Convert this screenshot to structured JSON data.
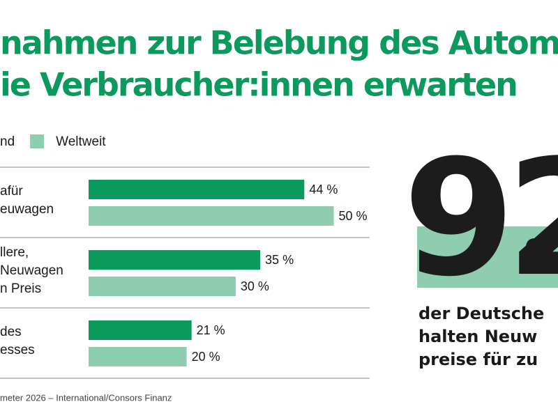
{
  "chart_data": {
    "type": "hbar",
    "title": [
      "nahmen zur Belebung des Automa",
      "ie Verbraucher:innen erwarten"
    ],
    "categories": [
      [
        "afür",
        "euwagen"
      ],
      [
        "llere,",
        "Neuwagen",
        "n Preis"
      ],
      [
        "des",
        "esses"
      ]
    ],
    "series": [
      {
        "name": "nd",
        "color": "#0b9a5c",
        "values": [
          44,
          35,
          21
        ],
        "value_labels": [
          "44 %",
          "35 %",
          "21 %"
        ]
      },
      {
        "name": "Weltweit",
        "color": "#8fcdb0",
        "values": [
          50,
          30,
          20
        ],
        "value_labels": [
          "50 %",
          "30 %",
          "20 %"
        ]
      }
    ],
    "source": "meter 2026 – International/Consors Finanz"
  },
  "callout": {
    "number": "92",
    "unit": "%",
    "lines": [
      "der Deutsche",
      "halten Neuw",
      "preise für zu"
    ]
  }
}
